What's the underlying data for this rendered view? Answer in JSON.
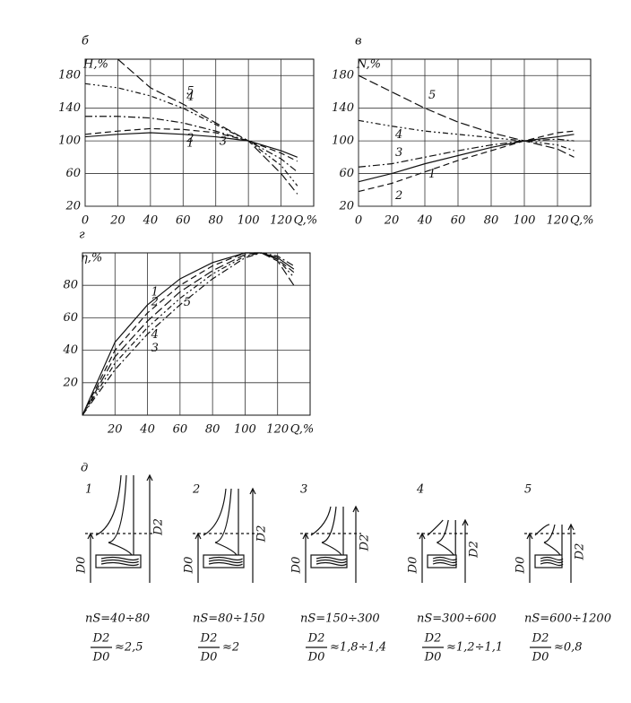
{
  "chart_data": [
    {
      "type": "line",
      "panel": "б",
      "y_label": "H,%",
      "x_label": "Q,%",
      "x": [
        0,
        20,
        40,
        60,
        80,
        100,
        120,
        130
      ],
      "xlim": [
        0,
        140
      ],
      "xticks": [
        0,
        20,
        40,
        60,
        80,
        100,
        120
      ],
      "ylim": [
        20,
        200
      ],
      "yticks": [
        20,
        60,
        100,
        140,
        180
      ],
      "grid": true,
      "series": [
        {
          "name": "1",
          "color": "#111111",
          "dash": "none",
          "values": [
            105,
            108,
            110,
            108,
            105,
            100,
            88,
            80
          ]
        },
        {
          "name": "2",
          "color": "#111111",
          "dash": "7 4",
          "values": [
            108,
            112,
            115,
            114,
            110,
            100,
            85,
            75
          ]
        },
        {
          "name": "3",
          "color": "#111111",
          "dash": "8 3 2 3",
          "values": [
            130,
            130,
            128,
            122,
            112,
            100,
            78,
            62
          ]
        },
        {
          "name": "4",
          "color": "#111111",
          "dash": "6 3 2 3 2 3",
          "values": [
            170,
            165,
            155,
            140,
            120,
            100,
            70,
            45
          ]
        },
        {
          "name": "5",
          "color": "#111111",
          "dash": "10 4",
          "values": [
            null,
            200,
            165,
            145,
            122,
            100,
            60,
            35
          ]
        }
      ]
    },
    {
      "type": "line",
      "panel": "в",
      "y_label": "N,%",
      "x_label": "Q,%",
      "x": [
        0,
        20,
        40,
        60,
        80,
        100,
        120,
        130
      ],
      "xlim": [
        0,
        140
      ],
      "xticks": [
        0,
        20,
        40,
        60,
        80,
        100,
        120
      ],
      "ylim": [
        20,
        200
      ],
      "yticks": [
        20,
        60,
        100,
        140,
        180
      ],
      "grid": true,
      "series": [
        {
          "name": "1",
          "color": "#111111",
          "dash": "none",
          "values": [
            50,
            60,
            72,
            82,
            92,
            100,
            105,
            108
          ]
        },
        {
          "name": "2",
          "color": "#111111",
          "dash": "7 4",
          "values": [
            38,
            48,
            62,
            76,
            88,
            100,
            110,
            112
          ]
        },
        {
          "name": "3",
          "color": "#111111",
          "dash": "8 3 2 3",
          "values": [
            68,
            72,
            80,
            88,
            95,
            100,
            102,
            100
          ]
        },
        {
          "name": "4",
          "color": "#111111",
          "dash": "6 3 2 3 2 3",
          "values": [
            125,
            118,
            112,
            108,
            104,
            100,
            95,
            88
          ]
        },
        {
          "name": "5",
          "color": "#111111",
          "dash": "10 4",
          "values": [
            180,
            160,
            140,
            123,
            110,
            100,
            90,
            80
          ]
        }
      ]
    },
    {
      "type": "line",
      "panel": "г",
      "y_label": "η,%",
      "x_label": "Q,%",
      "x": [
        0,
        20,
        40,
        60,
        80,
        100,
        110,
        120,
        130
      ],
      "xlim": [
        0,
        140
      ],
      "xticks": [
        20,
        40,
        60,
        80,
        100,
        120
      ],
      "ylim": [
        0,
        100
      ],
      "yticks": [
        20,
        40,
        60,
        80
      ],
      "grid": true,
      "series": [
        {
          "name": "1",
          "color": "#111111",
          "dash": "none",
          "values": [
            0,
            45,
            68,
            84,
            94,
            100,
            100,
            97,
            90
          ]
        },
        {
          "name": "2",
          "color": "#111111",
          "dash": "7 4",
          "values": [
            0,
            40,
            63,
            80,
            92,
            100,
            100,
            96,
            88
          ]
        },
        {
          "name": "3",
          "color": "#111111",
          "dash": "8 3 2 3",
          "values": [
            0,
            28,
            50,
            68,
            84,
            97,
            100,
            98,
            92
          ]
        },
        {
          "name": "4",
          "color": "#111111",
          "dash": "6 3 2 3 2 3",
          "values": [
            0,
            32,
            54,
            72,
            87,
            98,
            100,
            96,
            85
          ]
        },
        {
          "name": "5",
          "color": "#111111",
          "dash": "10 4",
          "values": [
            0,
            36,
            58,
            76,
            89,
            99,
            100,
            95,
            80
          ]
        }
      ]
    }
  ],
  "impellers": {
    "panel": "д",
    "d0": "D0",
    "d2": "D2",
    "num": "D2",
    "den": "D0",
    "items": [
      {
        "number": "1",
        "speed": "nS=40÷80",
        "ratio": "≈2,5"
      },
      {
        "number": "2",
        "speed": "nS=80÷150",
        "ratio": "≈2"
      },
      {
        "number": "3",
        "speed": "nS=150÷300",
        "ratio": "≈1,8÷1,4"
      },
      {
        "number": "4",
        "speed": "nS=300÷600",
        "ratio": "≈1,2÷1,1"
      },
      {
        "number": "5",
        "speed": "nS=600÷1200",
        "ratio": "≈0,8"
      }
    ]
  }
}
